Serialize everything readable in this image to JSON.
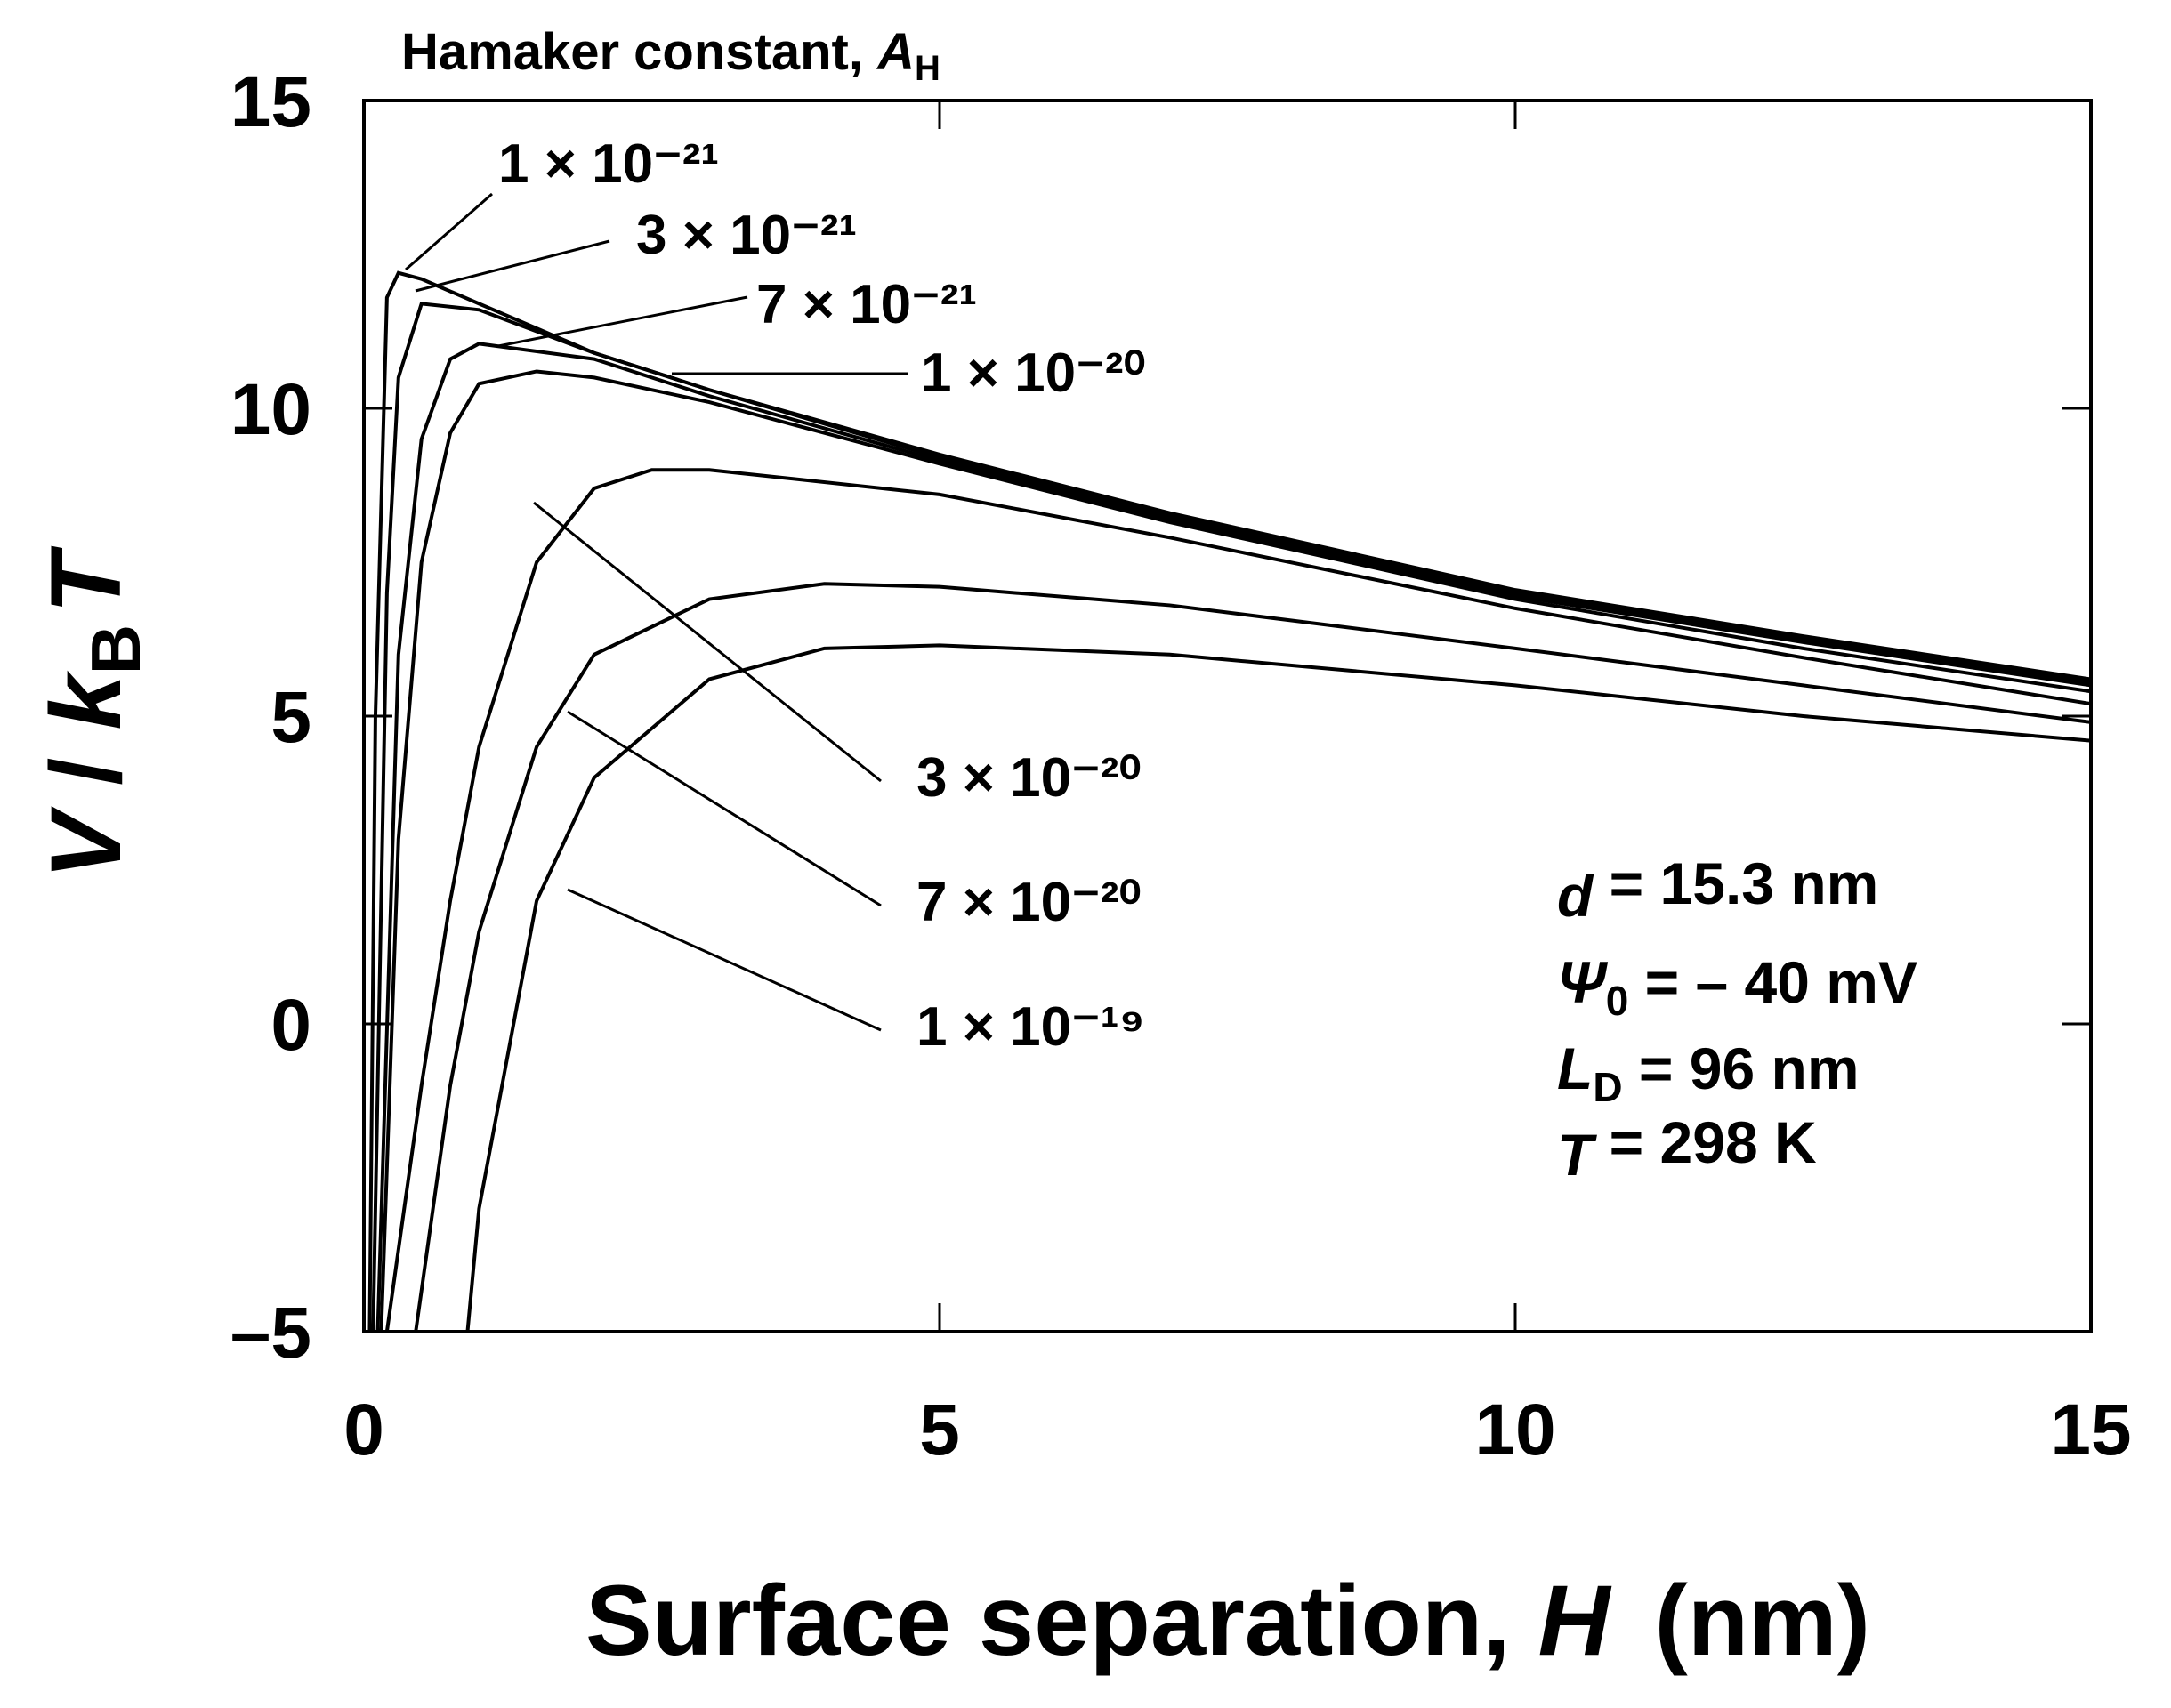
{
  "chart_data": {
    "type": "line",
    "legend_title": {
      "text": "Hamaker constant, ",
      "symbol": "A",
      "sub": "H"
    },
    "xlabel": {
      "text": "Surface separation, ",
      "symbol": "H",
      "unit": "(nm)"
    },
    "ylabel": {
      "symbol": "V",
      "text": " / ",
      "k": "k",
      "sub": "B",
      "tail": "T"
    },
    "xlim": [
      0,
      15
    ],
    "xticks": [
      0,
      5,
      10,
      15
    ],
    "ylim": [
      -5,
      15
    ],
    "yticks": [
      {
        "value": -5,
        "label": "–5"
      },
      0,
      5,
      10,
      15
    ],
    "color": "#000000",
    "series": [
      {
        "name": "1 × 10⁻²¹",
        "x": [
          0.05,
          0.1,
          0.2,
          0.3,
          0.5,
          1,
          2,
          3,
          5,
          7,
          10,
          12.5,
          15
        ],
        "values": [
          -5,
          5,
          11.8,
          12.2,
          12.1,
          11.7,
          10.9,
          10.3,
          9.25,
          8.3,
          7.05,
          6.3,
          5.6
        ]
      },
      {
        "name": "3 × 10⁻²¹",
        "x": [
          0.08,
          0.2,
          0.3,
          0.5,
          1,
          2,
          3,
          5,
          7,
          10,
          12.5,
          15
        ],
        "values": [
          -5,
          7,
          10.5,
          11.7,
          11.6,
          10.9,
          10.3,
          9.2,
          8.25,
          7.0,
          6.25,
          5.55
        ]
      },
      {
        "name": "7 × 10⁻²¹",
        "x": [
          0.12,
          0.3,
          0.5,
          0.75,
          1,
          2,
          3,
          5,
          7,
          10,
          12.5,
          15
        ],
        "values": [
          -5,
          6,
          9.5,
          10.8,
          11.05,
          10.8,
          10.2,
          9.15,
          8.2,
          6.95,
          6.2,
          5.5
        ]
      },
      {
        "name": "1 × 10⁻²⁰",
        "x": [
          0.15,
          0.3,
          0.5,
          0.75,
          1,
          1.5,
          2,
          3,
          5,
          7,
          10,
          12.5,
          15
        ],
        "values": [
          -5,
          3,
          7.5,
          9.6,
          10.4,
          10.6,
          10.5,
          10.1,
          9.1,
          8.15,
          6.9,
          6.1,
          5.4
        ]
      },
      {
        "name": "3 × 10⁻²⁰",
        "x": [
          0.2,
          0.5,
          0.75,
          1,
          1.5,
          2,
          2.5,
          3,
          5,
          7,
          10,
          12.5,
          15
        ],
        "values": [
          -5,
          -1,
          2,
          4.5,
          7.5,
          8.7,
          9.0,
          9.0,
          8.6,
          7.9,
          6.75,
          5.95,
          5.2
        ]
      },
      {
        "name": "7 × 10⁻²⁰",
        "x": [
          0.45,
          0.75,
          1,
          1.5,
          2,
          3,
          4,
          5,
          7,
          10,
          12.5,
          15
        ],
        "values": [
          -5,
          -1,
          1.5,
          4.5,
          6.0,
          6.9,
          7.15,
          7.1,
          6.8,
          6.1,
          5.5,
          4.9
        ]
      },
      {
        "name": "1 × 10⁻¹⁹",
        "x": [
          0.9,
          1,
          1.5,
          2,
          3,
          4,
          5,
          7,
          10,
          12.5,
          15
        ],
        "values": [
          -5,
          -3,
          2,
          4.0,
          5.6,
          6.1,
          6.15,
          6.0,
          5.5,
          5.0,
          4.6
        ]
      }
    ],
    "annotations": [
      {
        "symbol": "d",
        "sub": "",
        "text": " = 15.3 nm"
      },
      {
        "symbol": "Ψ",
        "sub": "0",
        "text": " = – 40 mV"
      },
      {
        "symbol": "L",
        "sub": "D",
        "text": " = 96 nm"
      },
      {
        "symbol": "T",
        "sub": "",
        "text": " = 298 K"
      }
    ]
  }
}
